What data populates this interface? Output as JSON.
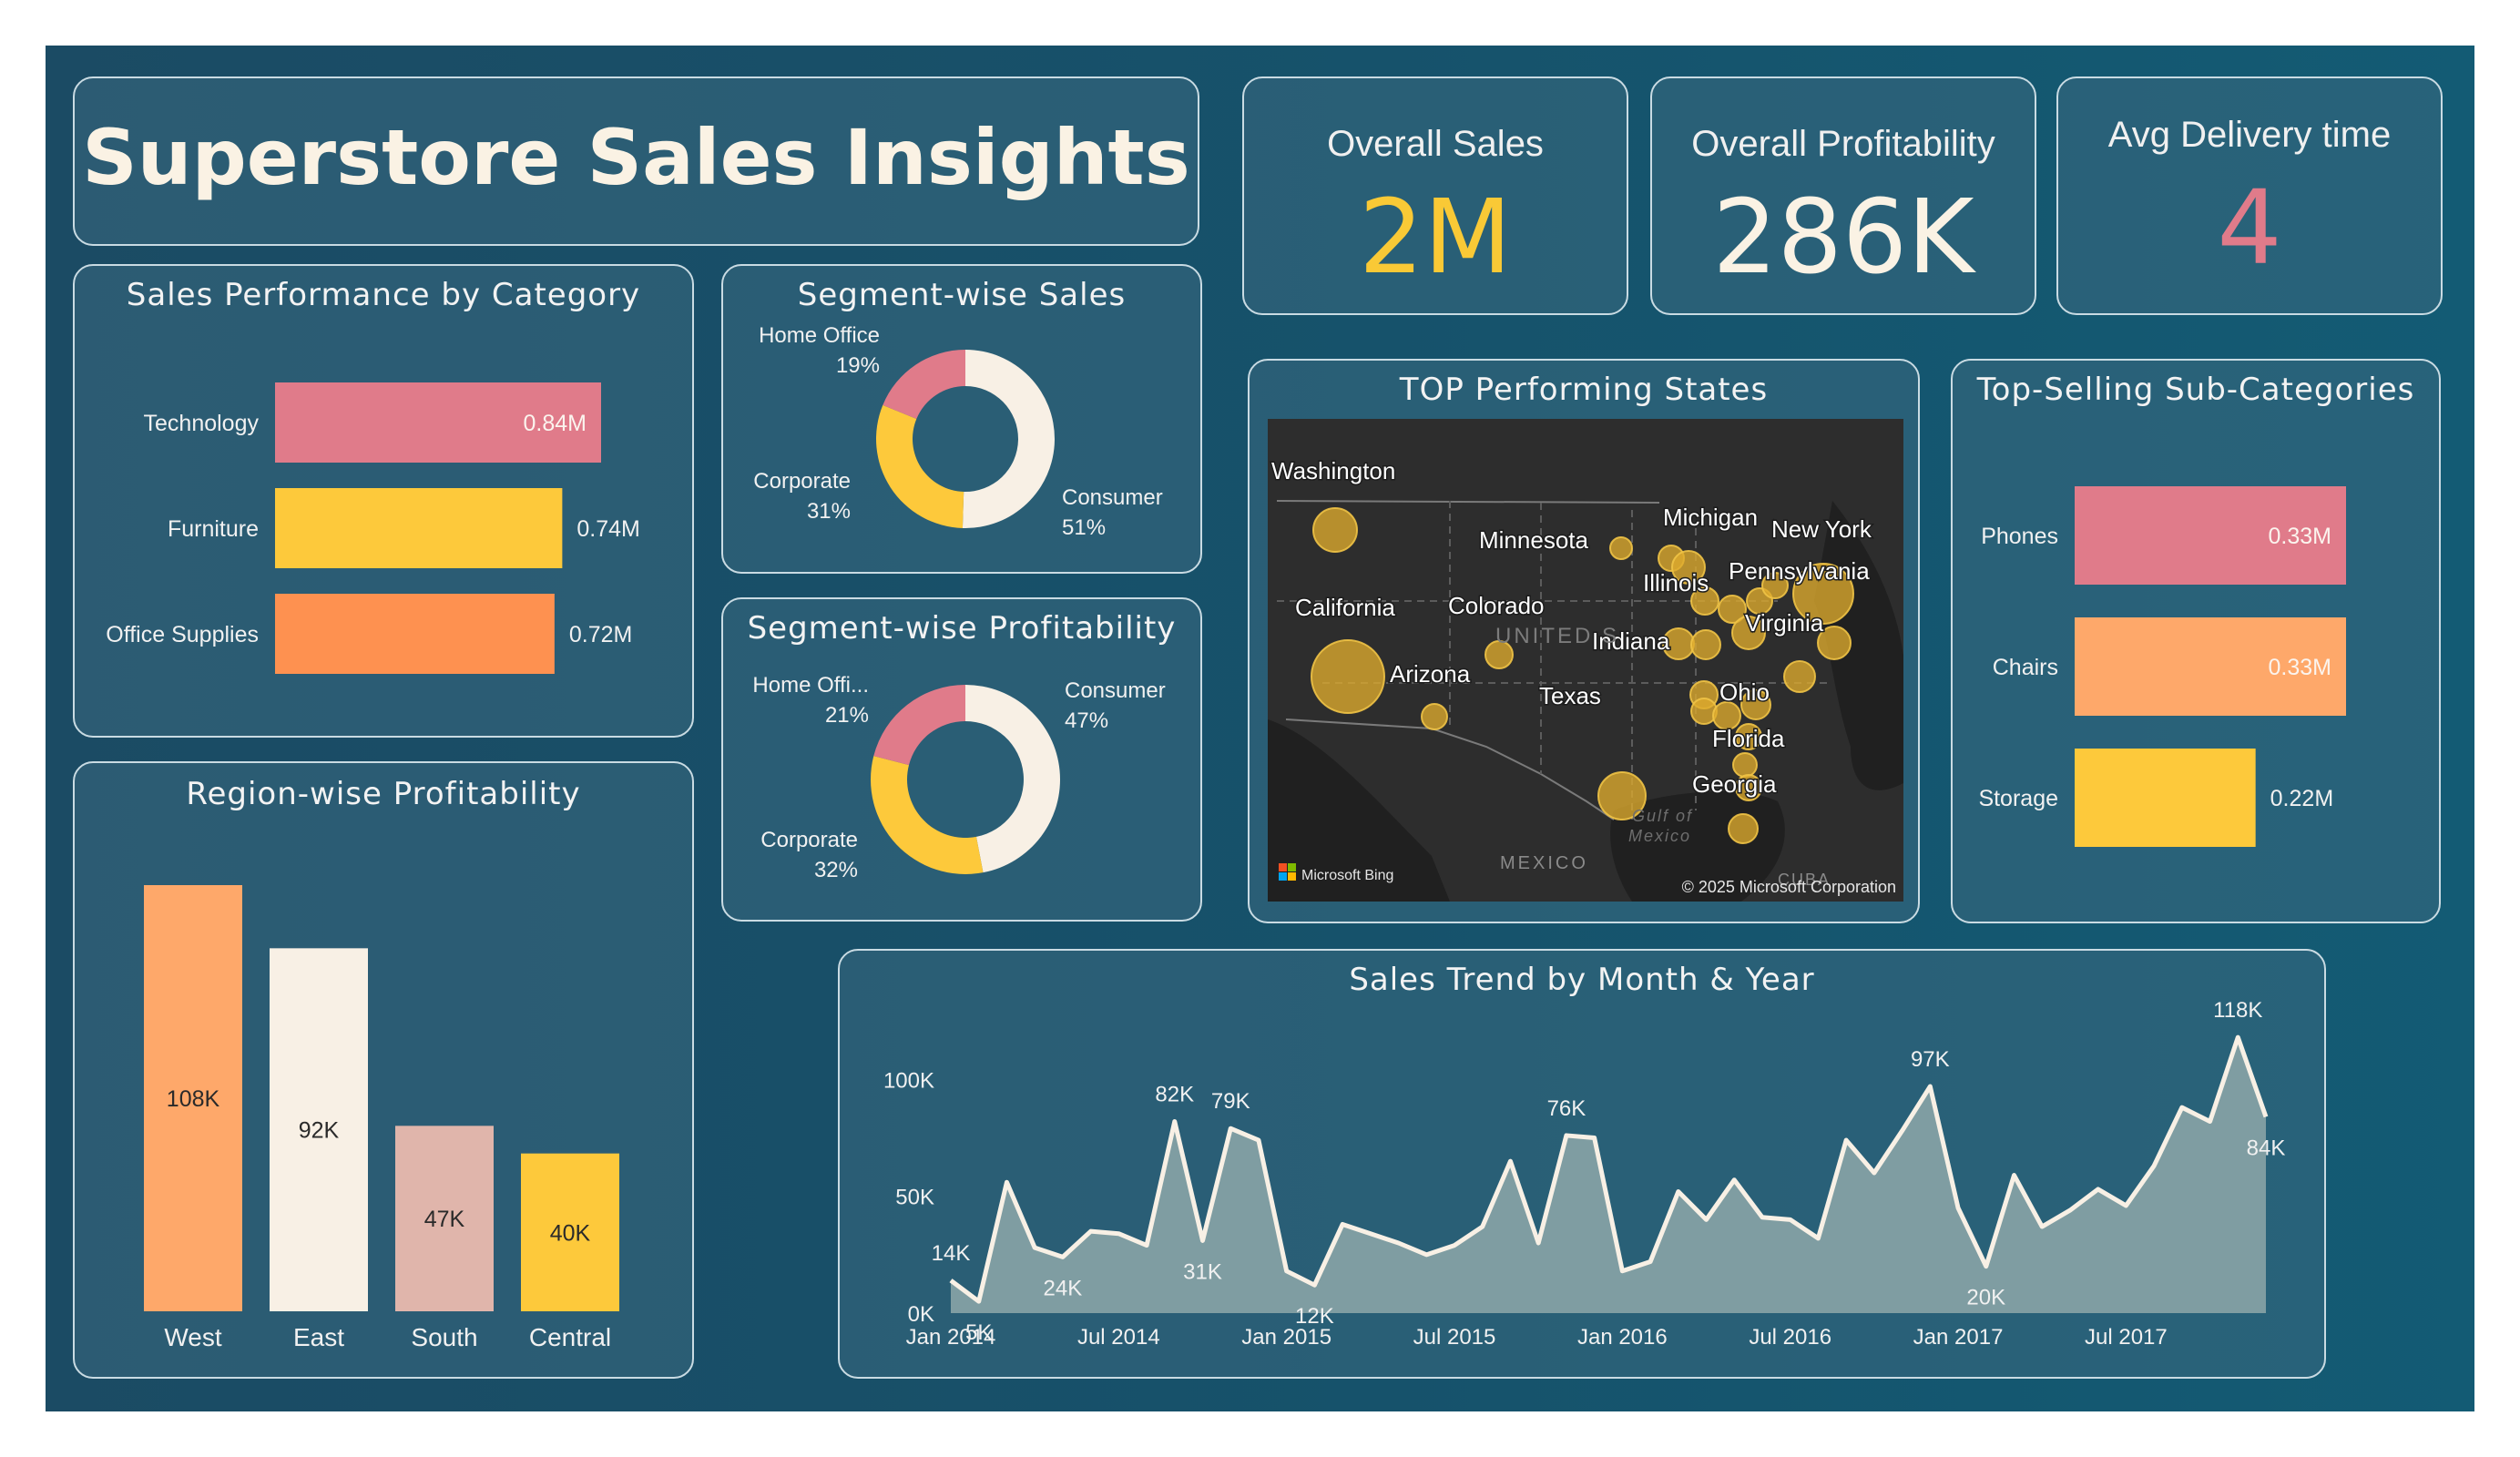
{
  "header": {
    "title": "Superstore Sales Insights"
  },
  "kpis": [
    {
      "label": "Overall Sales",
      "value": "2M",
      "color": "#f9c936"
    },
    {
      "label": "Overall Profitability",
      "value": "286K",
      "color": "#faf2e4"
    },
    {
      "label": "Avg Delivery time",
      "value": "4",
      "color": "#e07b8a"
    }
  ],
  "colors": {
    "pink": "#e07b8a",
    "yellow": "#fdc93b",
    "orange": "#fe9150",
    "peach": "#fea86a",
    "cream": "#f8f0e5",
    "rose": "#e0b5ab",
    "area": "#7f9da2"
  },
  "category_chart": {
    "title": "Sales Performance by Category",
    "chart_data": {
      "type": "bar",
      "orientation": "horizontal",
      "categories": [
        "Technology",
        "Furniture",
        "Office Supplies"
      ],
      "values": [
        0.84,
        0.74,
        0.72
      ],
      "labels": [
        "0.84M",
        "0.74M",
        "0.72M"
      ],
      "colors": [
        "#e07b8a",
        "#fdc93b",
        "#fe9150"
      ]
    }
  },
  "segment_sales": {
    "title": "Segment-wise Sales",
    "chart_data": {
      "type": "pie",
      "donut": true,
      "labels": [
        "Consumer",
        "Corporate",
        "Home Office"
      ],
      "values": [
        51,
        31,
        19
      ],
      "pct_labels": [
        "51%",
        "31%",
        "19%"
      ],
      "colors": [
        "#f8f0e5",
        "#fdc93b",
        "#e07b8a"
      ]
    }
  },
  "segment_profit": {
    "title": "Segment-wise Profitability",
    "chart_data": {
      "type": "pie",
      "donut": true,
      "labels": [
        "Consumer",
        "Corporate",
        "Home Offi..."
      ],
      "values": [
        47,
        32,
        21
      ],
      "pct_labels": [
        "47%",
        "32%",
        "21%"
      ],
      "colors": [
        "#f8f0e5",
        "#fdc93b",
        "#e07b8a"
      ]
    }
  },
  "region_chart": {
    "title": "Region-wise Profitability",
    "chart_data": {
      "type": "bar",
      "categories": [
        "West",
        "East",
        "South",
        "Central"
      ],
      "values": [
        108,
        92,
        47,
        40
      ],
      "labels": [
        "108K",
        "92K",
        "47K",
        "40K"
      ],
      "colors": [
        "#fea86a",
        "#f8f0e5",
        "#e0b5ab",
        "#fdc93b"
      ]
    }
  },
  "map": {
    "title": "TOP Performing States",
    "labels": [
      "Washington",
      "Minnesota",
      "Michigan",
      "New York",
      "Pennsylvania",
      "Illinois",
      "California",
      "Colorado",
      "Indiana",
      "Virginia",
      "Arizona",
      "Ohio",
      "Texas",
      "Florida",
      "Georgia"
    ],
    "attribution": "Microsoft Bing",
    "copyright": "© 2025 Microsoft Corporation",
    "country_labels": [
      "UNITED S",
      "MEXICO",
      "CUBA"
    ],
    "water_label": [
      "Gulf of",
      "Mexico"
    ]
  },
  "subcat_chart": {
    "title": "Top-Selling Sub-Categories",
    "chart_data": {
      "type": "bar",
      "orientation": "horizontal",
      "categories": [
        "Phones",
        "Chairs",
        "Storage"
      ],
      "values": [
        0.33,
        0.33,
        0.22
      ],
      "labels": [
        "0.33M",
        "0.33M",
        "0.22M"
      ],
      "colors": [
        "#e07b8a",
        "#fea86a",
        "#fdc93b"
      ]
    }
  },
  "trend_chart": {
    "title": "Sales Trend by Month & Year",
    "chart_data": {
      "type": "area",
      "x_ticks": [
        "Jan 2014",
        "Jul 2014",
        "Jan 2015",
        "Jul 2015",
        "Jan 2016",
        "Jul 2016",
        "Jan 2017",
        "Jul 2017"
      ],
      "y_ticks": [
        "0K",
        "50K",
        "100K"
      ],
      "ylim": [
        0,
        120
      ],
      "values": [
        14,
        5,
        56,
        28,
        24,
        35,
        34,
        29,
        82,
        31,
        79,
        74,
        18,
        12,
        38,
        34,
        30,
        25,
        29,
        37,
        65,
        30,
        76,
        75,
        18,
        22,
        52,
        40,
        57,
        41,
        40,
        32,
        74,
        60,
        78,
        97,
        45,
        20,
        59,
        37,
        44,
        53,
        46,
        63,
        88,
        82,
        118,
        84
      ],
      "data_labels": [
        {
          "index": 0,
          "text": "14K"
        },
        {
          "index": 1,
          "text": "5K"
        },
        {
          "index": 4,
          "text": "24K"
        },
        {
          "index": 8,
          "text": "82K"
        },
        {
          "index": 9,
          "text": "31K"
        },
        {
          "index": 10,
          "text": "79K"
        },
        {
          "index": 13,
          "text": "12K"
        },
        {
          "index": 22,
          "text": "76K"
        },
        {
          "index": 35,
          "text": "97K"
        },
        {
          "index": 37,
          "text": "20K"
        },
        {
          "index": 46,
          "text": "118K"
        },
        {
          "index": 47,
          "text": "84K"
        }
      ]
    }
  }
}
